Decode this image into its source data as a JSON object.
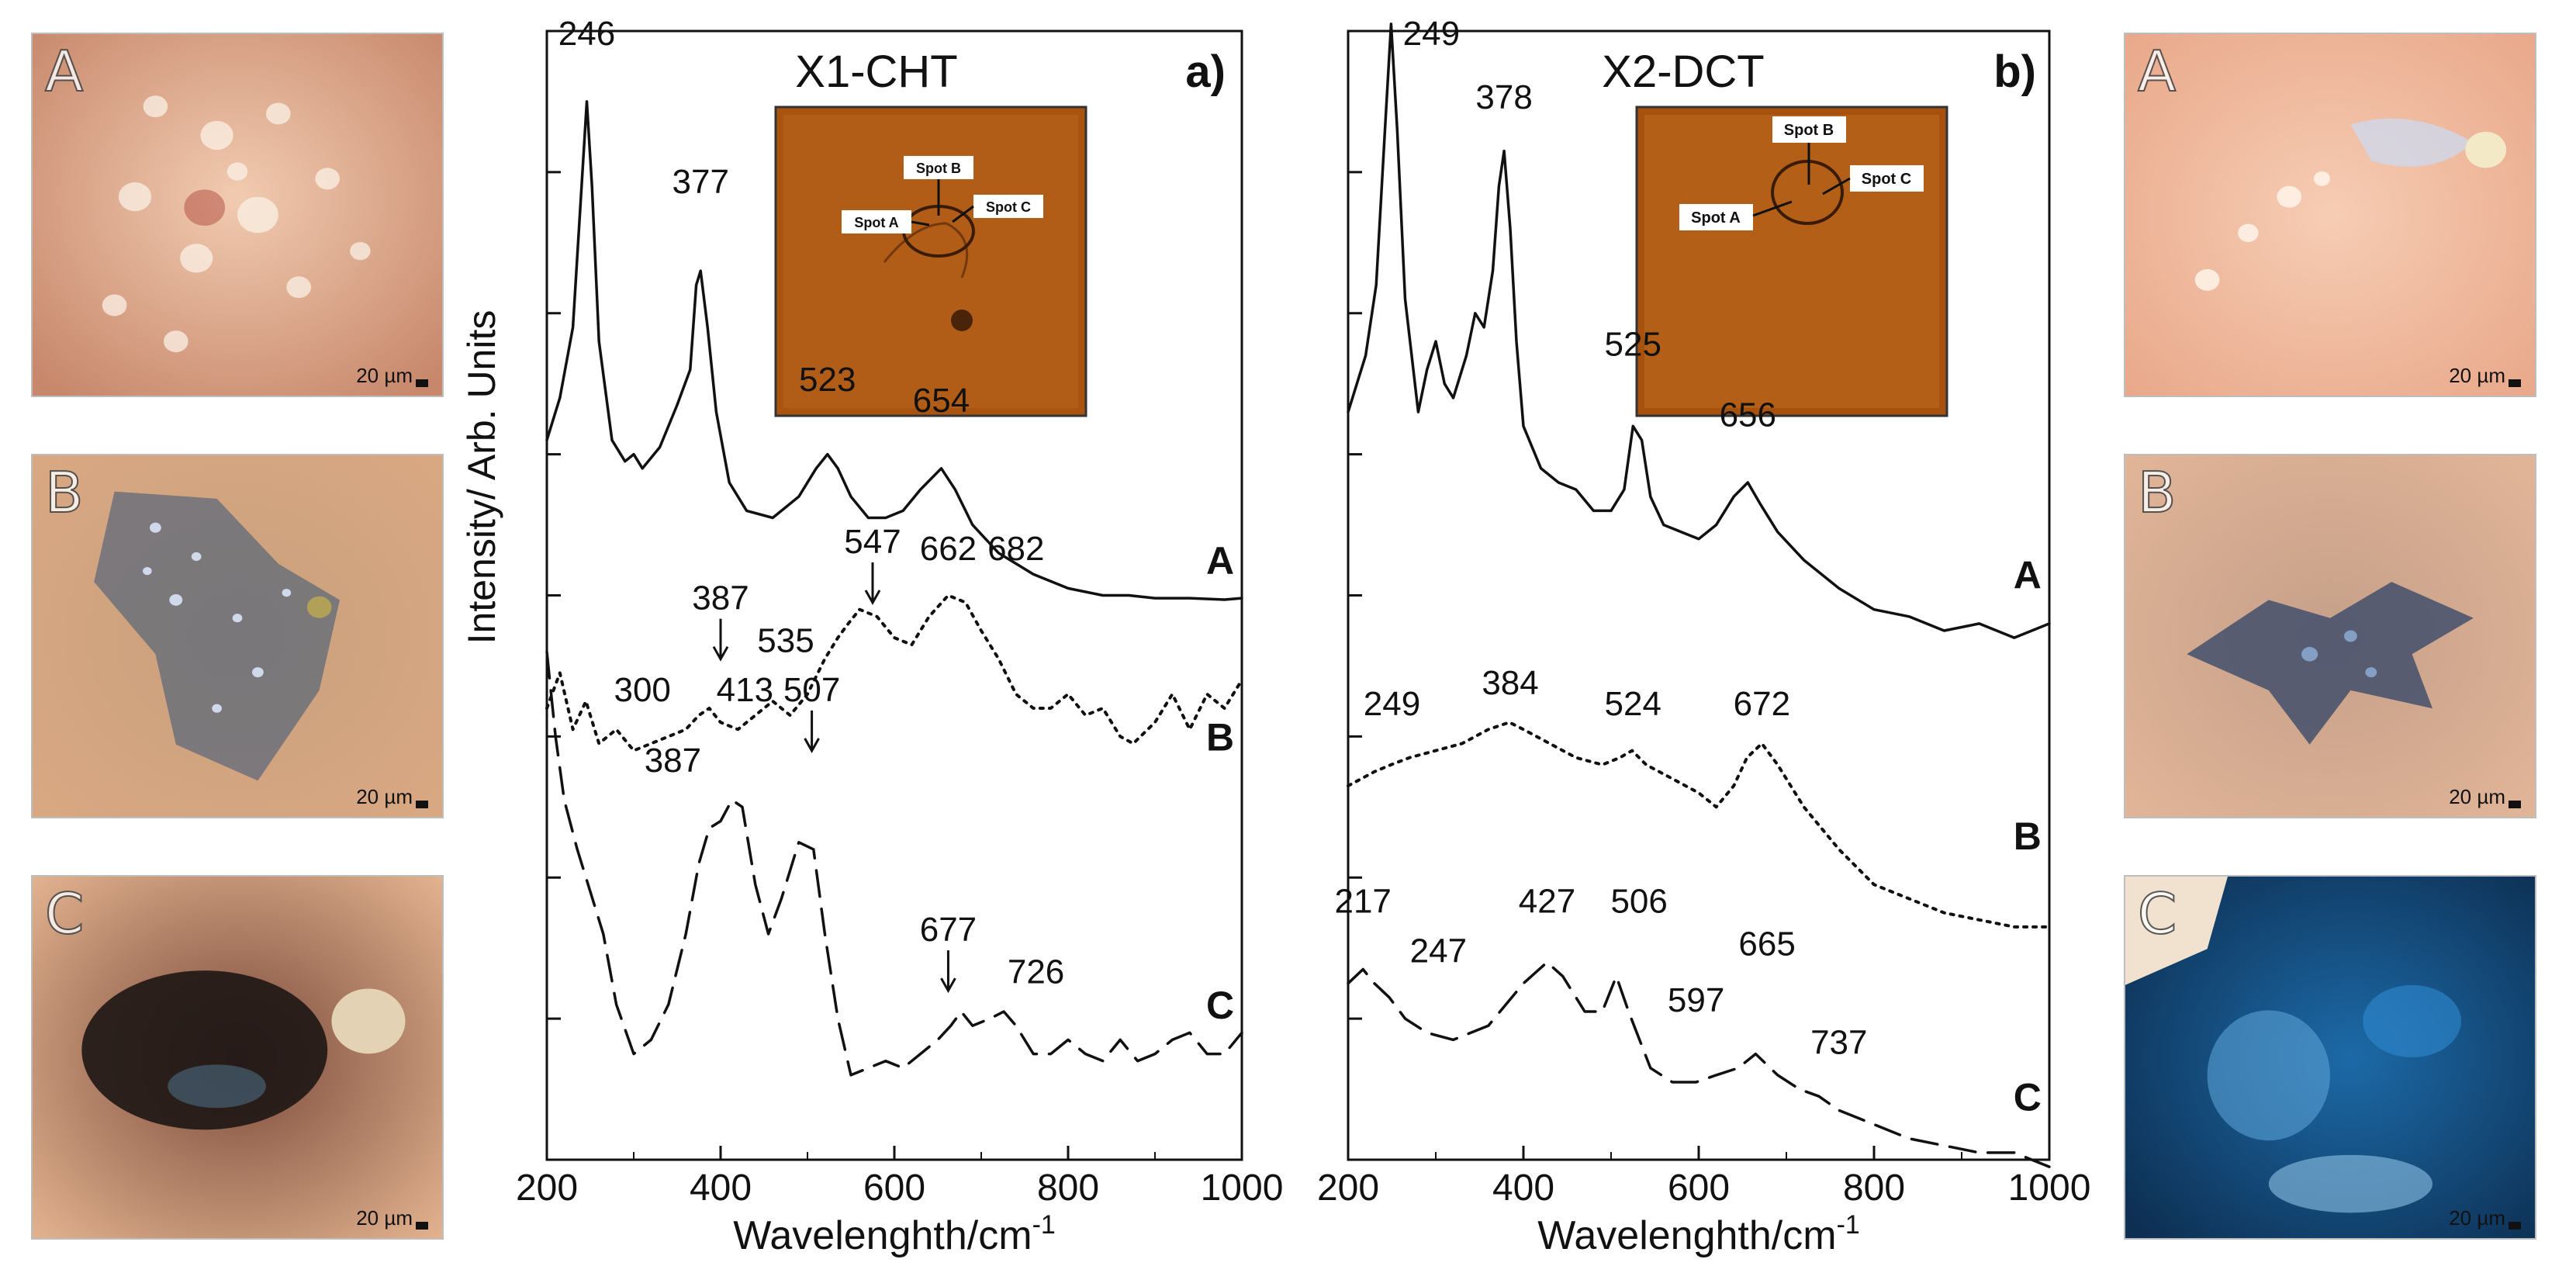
{
  "colors": {
    "accent": "#b8560f",
    "line": "#111111"
  },
  "micrographs": {
    "left": [
      {
        "letter": "A",
        "scale": "20 µm"
      },
      {
        "letter": "B",
        "scale": "20 µm"
      },
      {
        "letter": "C",
        "scale": "20 µm"
      }
    ],
    "right": [
      {
        "letter": "A",
        "scale": "20 µm"
      },
      {
        "letter": "B",
        "scale": "20 µm"
      },
      {
        "letter": "C",
        "scale": "20 µm"
      }
    ]
  },
  "chart_data": [
    {
      "type": "line",
      "title": "X1-CHT",
      "panel_label": "a)",
      "xlabel": "Wavelenghth/cm-1",
      "ylabel": "Intensity/ Arb. Units",
      "xlim": [
        200,
        1000
      ],
      "ylim": [
        0,
        8
      ],
      "x_ticks": [
        "200",
        "400",
        "600",
        "800",
        "1000"
      ],
      "inset": {
        "spots": [
          "Spot A",
          "Spot B",
          "Spot C"
        ]
      },
      "series": [
        {
          "name": "A",
          "style": "solid",
          "x": [
            200,
            215,
            230,
            240,
            246,
            252,
            260,
            275,
            290,
            300,
            310,
            330,
            350,
            365,
            372,
            377,
            385,
            395,
            410,
            430,
            460,
            490,
            510,
            523,
            535,
            550,
            570,
            590,
            610,
            630,
            654,
            670,
            690,
            720,
            760,
            800,
            840,
            870,
            900,
            940,
            980,
            1000
          ],
          "y": [
            5.1,
            5.4,
            5.9,
            6.9,
            7.5,
            6.9,
            5.8,
            5.1,
            4.95,
            5.0,
            4.9,
            5.05,
            5.35,
            5.6,
            6.2,
            6.3,
            5.9,
            5.3,
            4.8,
            4.6,
            4.55,
            4.7,
            4.9,
            5.0,
            4.9,
            4.7,
            4.55,
            4.55,
            4.6,
            4.75,
            4.9,
            4.75,
            4.5,
            4.3,
            4.15,
            4.05,
            4.0,
            4.0,
            3.98,
            3.98,
            3.97,
            3.98
          ]
        },
        {
          "name": "B",
          "style": "dotted",
          "x": [
            200,
            215,
            230,
            245,
            260,
            280,
            300,
            320,
            340,
            360,
            375,
            387,
            400,
            420,
            440,
            460,
            480,
            500,
            520,
            535,
            547,
            560,
            580,
            600,
            620,
            640,
            662,
            682,
            700,
            720,
            740,
            760,
            780,
            800,
            820,
            840,
            860,
            875,
            900,
            920,
            940,
            960,
            980,
            1000
          ],
          "y": [
            3.2,
            3.45,
            3.05,
            3.25,
            2.95,
            3.05,
            2.9,
            2.95,
            3.0,
            3.05,
            3.15,
            3.2,
            3.1,
            3.05,
            3.15,
            3.25,
            3.15,
            3.3,
            3.55,
            3.7,
            3.8,
            3.9,
            3.85,
            3.7,
            3.65,
            3.85,
            4.0,
            3.95,
            3.75,
            3.55,
            3.3,
            3.2,
            3.2,
            3.3,
            3.15,
            3.2,
            3.0,
            2.95,
            3.1,
            3.3,
            3.05,
            3.3,
            3.2,
            3.4
          ]
        },
        {
          "name": "C",
          "style": "dashed",
          "x": [
            200,
            210,
            220,
            235,
            250,
            265,
            280,
            300,
            320,
            340,
            360,
            375,
            387,
            400,
            413,
            425,
            440,
            455,
            470,
            490,
            507,
            520,
            535,
            550,
            570,
            590,
            610,
            630,
            650,
            665,
            677,
            690,
            710,
            726,
            740,
            760,
            780,
            800,
            820,
            840,
            860,
            880,
            900,
            920,
            940,
            960,
            980,
            1000
          ],
          "y": [
            3.6,
            3.0,
            2.55,
            2.2,
            1.9,
            1.6,
            1.1,
            0.75,
            0.85,
            1.1,
            1.6,
            2.1,
            2.35,
            2.4,
            2.55,
            2.5,
            1.95,
            1.6,
            1.85,
            2.25,
            2.2,
            1.6,
            1.0,
            0.6,
            0.65,
            0.7,
            0.65,
            0.75,
            0.85,
            0.95,
            1.05,
            0.95,
            1.0,
            1.05,
            0.95,
            0.75,
            0.75,
            0.85,
            0.75,
            0.7,
            0.85,
            0.7,
            0.75,
            0.85,
            0.9,
            0.75,
            0.75,
            0.9
          ]
        }
      ],
      "annotations": [
        {
          "text": "246",
          "x": 246,
          "y": 7.9,
          "arrow": false
        },
        {
          "text": "377",
          "x": 377,
          "y": 6.85,
          "arrow": false
        },
        {
          "text": "523",
          "x": 523,
          "y": 5.45,
          "arrow": false
        },
        {
          "text": "654",
          "x": 654,
          "y": 5.3,
          "arrow": false
        },
        {
          "text": "A",
          "x": 975,
          "y": 4.15,
          "bold": true,
          "arrow": false
        },
        {
          "text": "547",
          "x": 575,
          "y": 4.3,
          "arrow": true
        },
        {
          "text": "662",
          "x": 662,
          "y": 4.25,
          "arrow": false
        },
        {
          "text": "682",
          "x": 740,
          "y": 4.25,
          "arrow": false
        },
        {
          "text": "387",
          "x": 400,
          "y": 3.9,
          "arrow": true
        },
        {
          "text": "535",
          "x": 475,
          "y": 3.6,
          "arrow": false
        },
        {
          "text": "300",
          "x": 310,
          "y": 3.25,
          "arrow": false
        },
        {
          "text": "B",
          "x": 975,
          "y": 2.9,
          "bold": true,
          "arrow": false
        },
        {
          "text": "387",
          "x": 345,
          "y": 2.75,
          "arrow": false
        },
        {
          "text": "413",
          "x": 428,
          "y": 3.25,
          "arrow": false
        },
        {
          "text": "507",
          "x": 505,
          "y": 3.25,
          "arrow": true
        },
        {
          "text": "677",
          "x": 662,
          "y": 1.55,
          "arrow": true
        },
        {
          "text": "726",
          "x": 763,
          "y": 1.25,
          "arrow": false
        },
        {
          "text": "C",
          "x": 975,
          "y": 1.0,
          "bold": true,
          "arrow": false
        }
      ]
    },
    {
      "type": "line",
      "title": "X2-DCT",
      "panel_label": "b)",
      "xlabel": "Wavelenghth/cm-1",
      "xlim": [
        200,
        1000
      ],
      "ylim": [
        0,
        8
      ],
      "x_ticks": [
        "200",
        "400",
        "600",
        "800",
        "1000"
      ],
      "inset": {
        "spots": [
          "Spot A",
          "Spot B",
          "Spot C"
        ]
      },
      "series": [
        {
          "name": "A",
          "style": "solid",
          "x": [
            200,
            210,
            220,
            232,
            242,
            249,
            256,
            265,
            280,
            290,
            300,
            310,
            320,
            335,
            345,
            355,
            365,
            372,
            378,
            385,
            392,
            400,
            420,
            440,
            460,
            480,
            500,
            515,
            525,
            535,
            545,
            560,
            580,
            600,
            620,
            640,
            656,
            670,
            690,
            720,
            760,
            800,
            840,
            880,
            920,
            960,
            1000
          ],
          "y": [
            5.3,
            5.5,
            5.7,
            6.2,
            7.3,
            8.05,
            7.3,
            6.1,
            5.3,
            5.6,
            5.8,
            5.5,
            5.4,
            5.7,
            6.0,
            5.9,
            6.3,
            6.9,
            7.15,
            6.6,
            5.8,
            5.2,
            4.9,
            4.8,
            4.75,
            4.6,
            4.6,
            4.75,
            5.2,
            5.1,
            4.7,
            4.5,
            4.45,
            4.4,
            4.5,
            4.7,
            4.8,
            4.65,
            4.45,
            4.25,
            4.05,
            3.9,
            3.85,
            3.75,
            3.8,
            3.7,
            3.8
          ]
        },
        {
          "name": "B",
          "style": "dotted",
          "x": [
            200,
            230,
            249,
            270,
            300,
            330,
            360,
            384,
            400,
            430,
            460,
            490,
            510,
            524,
            540,
            570,
            600,
            620,
            640,
            655,
            672,
            690,
            720,
            760,
            800,
            840,
            880,
            920,
            960,
            1000
          ],
          "y": [
            2.65,
            2.75,
            2.8,
            2.85,
            2.9,
            2.95,
            3.05,
            3.1,
            3.05,
            2.95,
            2.85,
            2.8,
            2.85,
            2.9,
            2.8,
            2.7,
            2.6,
            2.5,
            2.65,
            2.85,
            2.95,
            2.8,
            2.5,
            2.2,
            1.95,
            1.85,
            1.75,
            1.7,
            1.65,
            1.65
          ]
        },
        {
          "name": "C",
          "style": "dashed",
          "x": [
            200,
            217,
            230,
            247,
            265,
            290,
            320,
            360,
            400,
            427,
            445,
            470,
            490,
            506,
            520,
            545,
            570,
            597,
            620,
            645,
            665,
            690,
            715,
            737,
            760,
            800,
            840,
            880,
            920,
            960,
            1000
          ],
          "y": [
            1.25,
            1.35,
            1.25,
            1.15,
            1.0,
            0.9,
            0.85,
            0.95,
            1.25,
            1.4,
            1.3,
            1.05,
            1.05,
            1.3,
            1.05,
            0.65,
            0.55,
            0.55,
            0.6,
            0.65,
            0.75,
            0.6,
            0.5,
            0.45,
            0.35,
            0.25,
            0.15,
            0.1,
            0.05,
            0.05,
            -0.05
          ]
        }
      ],
      "annotations": [
        {
          "text": "249",
          "x": 295,
          "y": 7.9,
          "arrow": false
        },
        {
          "text": "378",
          "x": 378,
          "y": 7.45,
          "arrow": false
        },
        {
          "text": "525",
          "x": 525,
          "y": 5.7,
          "arrow": false
        },
        {
          "text": "656",
          "x": 656,
          "y": 5.2,
          "arrow": false
        },
        {
          "text": "A",
          "x": 975,
          "y": 4.05,
          "bold": true,
          "arrow": false
        },
        {
          "text": "249",
          "x": 250,
          "y": 3.15,
          "arrow": false
        },
        {
          "text": "384",
          "x": 385,
          "y": 3.3,
          "arrow": false
        },
        {
          "text": "524",
          "x": 525,
          "y": 3.15,
          "arrow": false
        },
        {
          "text": "672",
          "x": 672,
          "y": 3.15,
          "arrow": false
        },
        {
          "text": "B",
          "x": 975,
          "y": 2.2,
          "bold": true,
          "arrow": false
        },
        {
          "text": "217",
          "x": 217,
          "y": 1.75,
          "arrow": false
        },
        {
          "text": "247",
          "x": 303,
          "y": 1.4,
          "arrow": false
        },
        {
          "text": "427",
          "x": 427,
          "y": 1.75,
          "arrow": false
        },
        {
          "text": "506",
          "x": 532,
          "y": 1.75,
          "arrow": false
        },
        {
          "text": "665",
          "x": 678,
          "y": 1.45,
          "arrow": false
        },
        {
          "text": "597",
          "x": 597,
          "y": 1.05,
          "arrow": false
        },
        {
          "text": "737",
          "x": 760,
          "y": 0.75,
          "arrow": false
        },
        {
          "text": "C",
          "x": 975,
          "y": 0.35,
          "bold": true,
          "arrow": false
        }
      ]
    }
  ]
}
